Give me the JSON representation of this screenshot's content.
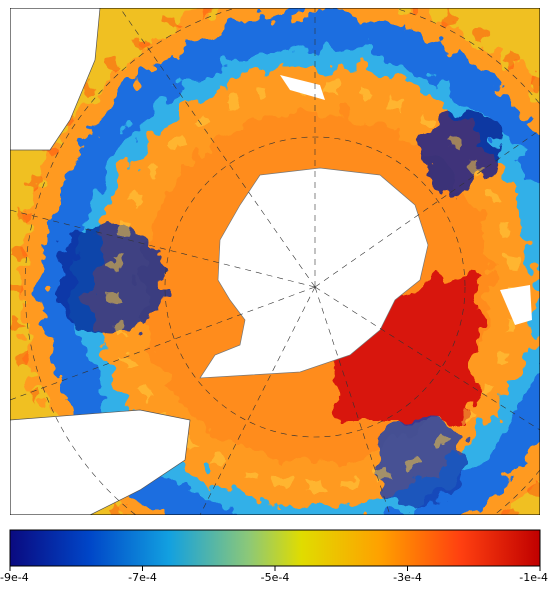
{
  "colorbar": {
    "range": [
      -0.0009,
      -0.0001
    ],
    "ticks": [
      {
        "value": -0.0009,
        "label": "-9e-4"
      },
      {
        "value": -0.0007,
        "label": "-7e-4"
      },
      {
        "value": -0.0005,
        "label": "-5e-4"
      },
      {
        "value": -0.0003,
        "label": "-3e-4"
      },
      {
        "value": -0.0001,
        "label": "-1e-4"
      }
    ]
  }
}
